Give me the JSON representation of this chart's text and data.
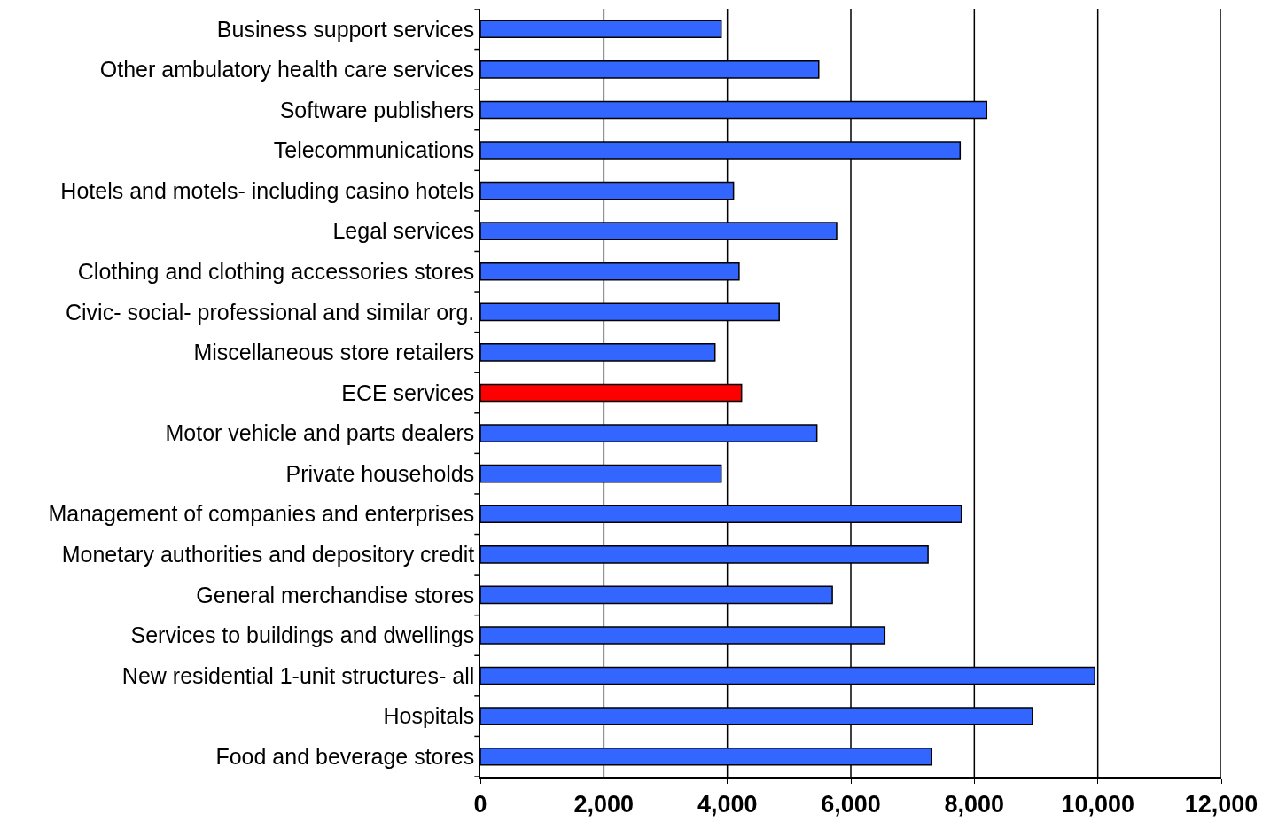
{
  "chart_data": {
    "type": "bar",
    "orientation": "horizontal",
    "categories": [
      "Business support services",
      "Other ambulatory health care services",
      "Software publishers",
      "Telecommunications",
      "Hotels and motels- including casino hotels",
      "Legal services",
      "Clothing and clothing accessories stores",
      "Civic- social- professional and similar org.",
      "Miscellaneous store retailers",
      "ECE services",
      "Motor vehicle and parts dealers",
      "Private households",
      "Management of companies and enterprises",
      "Monetary authorities and depository credit",
      "General merchandise stores",
      "Services to buildings and dwellings",
      "New residential 1-unit structures- all",
      "Hospitals",
      "Food and beverage stores"
    ],
    "values": [
      3900,
      5480,
      8200,
      7770,
      4100,
      5770,
      4190,
      4840,
      3800,
      4230,
      5450,
      3900,
      7790,
      7250,
      5700,
      6550,
      9950,
      8940,
      7310
    ],
    "colors": [
      "#3366ff",
      "#3366ff",
      "#3366ff",
      "#3366ff",
      "#3366ff",
      "#3366ff",
      "#3366ff",
      "#3366ff",
      "#3366ff",
      "#ff0000",
      "#3366ff",
      "#3366ff",
      "#3366ff",
      "#3366ff",
      "#3366ff",
      "#3366ff",
      "#3366ff",
      "#3366ff",
      "#3366ff"
    ],
    "xlim": [
      0,
      12000
    ],
    "xticks": [
      {
        "value": 0,
        "label": "0"
      },
      {
        "value": 2000,
        "label": "2,000"
      },
      {
        "value": 4000,
        "label": "4,000"
      },
      {
        "value": 6000,
        "label": "6,000"
      },
      {
        "value": 8000,
        "label": "8,000"
      },
      {
        "value": 10000,
        "label": "10,000"
      },
      {
        "value": 12000,
        "label": "12,000"
      }
    ],
    "grid": "x"
  }
}
